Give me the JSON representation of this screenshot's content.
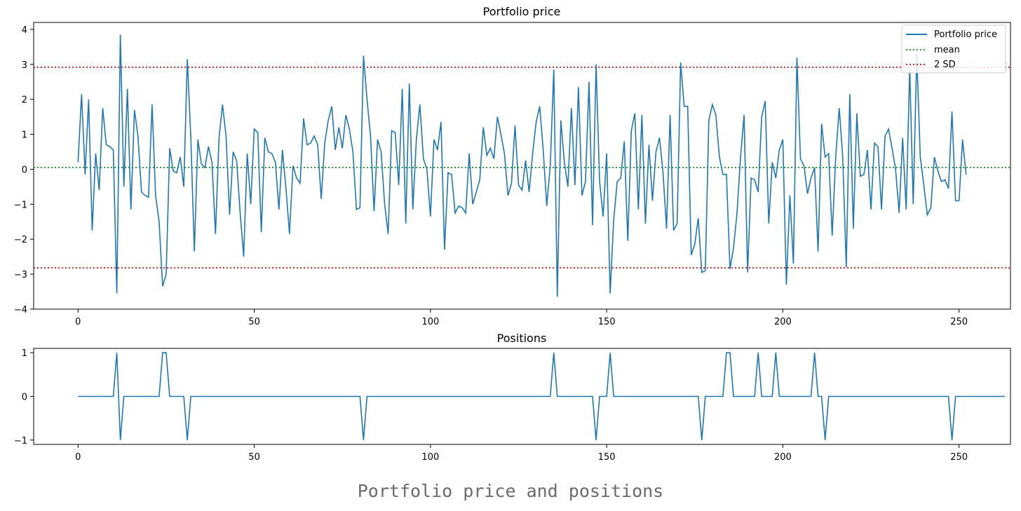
{
  "caption": "Portfolio price and positions",
  "colors": {
    "series": "#1f77b4",
    "mean": "#2ca02c",
    "sd": "#d62728",
    "axis": "#000000"
  },
  "chart_data": [
    {
      "type": "line",
      "title": "Portfolio price",
      "xlim": [
        -12.6,
        264.6
      ],
      "ylim": [
        -4,
        4.2
      ],
      "xticks": [
        0,
        50,
        100,
        150,
        200,
        250
      ],
      "yticks": [
        -4,
        -3,
        -2,
        -1,
        0,
        1,
        2,
        3,
        4
      ],
      "grid": false,
      "legend_position": "top-right",
      "series": [
        {
          "name": "Portfolio price",
          "style": "solid",
          "color": "#1f77b4",
          "y": [
            0.2,
            2.15,
            -0.15,
            2.0,
            -1.75,
            0.45,
            -0.6,
            1.75,
            0.7,
            0.65,
            0.55,
            -3.55,
            3.85,
            -0.5,
            2.3,
            -1.15,
            1.7,
            0.95,
            -0.65,
            -0.75,
            -0.8,
            1.85,
            -0.75,
            -1.5,
            -3.35,
            -3.0,
            0.6,
            -0.05,
            -0.1,
            0.35,
            -0.5,
            3.15,
            0.9,
            -2.35,
            0.85,
            0.15,
            0.05,
            0.65,
            0.2,
            -1.85,
            0.9,
            1.85,
            0.95,
            -1.3,
            0.5,
            0.25,
            -1.25,
            -2.5,
            0.45,
            -1.0,
            1.15,
            1.05,
            -1.8,
            0.9,
            0.5,
            0.45,
            0.2,
            -1.15,
            0.55,
            -0.55,
            -1.85,
            0.1,
            -0.25,
            -0.4,
            1.45,
            0.7,
            0.75,
            0.95,
            0.7,
            -0.85,
            0.75,
            1.4,
            1.8,
            0.55,
            1.2,
            0.6,
            1.55,
            1.15,
            0.5,
            -1.15,
            -1.1,
            3.25,
            2.0,
            0.95,
            -1.2,
            0.85,
            0.5,
            -1.0,
            -1.85,
            1.1,
            1.05,
            -0.45,
            2.3,
            -1.55,
            2.45,
            -1.15,
            0.85,
            1.85,
            0.3,
            0.0,
            -1.35,
            0.85,
            0.55,
            1.35,
            -2.3,
            -0.1,
            -0.15,
            -1.25,
            -1.05,
            -1.1,
            -1.25,
            0.45,
            -1.0,
            -0.65,
            -0.3,
            1.2,
            0.4,
            0.6,
            0.3,
            1.5,
            1.0,
            0.45,
            -0.75,
            -0.4,
            1.25,
            -0.45,
            -0.6,
            0.25,
            -0.65,
            0.45,
            1.35,
            1.8,
            0.55,
            -1.05,
            0.1,
            2.85,
            -3.65,
            1.4,
            0.2,
            -0.5,
            1.75,
            -0.45,
            2.35,
            -0.75,
            -0.35,
            2.5,
            -1.6,
            3.0,
            -0.35,
            -1.35,
            0.45,
            -3.55,
            -1.45,
            -0.35,
            -0.25,
            0.8,
            -2.05,
            1.1,
            1.6,
            -1.15,
            1.55,
            -1.55,
            0.7,
            -0.9,
            0.5,
            0.9,
            -0.1,
            -1.7,
            1.55,
            -1.75,
            -1.55,
            3.05,
            1.8,
            1.8,
            -2.45,
            -2.15,
            -1.4,
            -2.95,
            -2.9,
            1.4,
            1.85,
            1.55,
            0.35,
            -0.15,
            -0.15,
            -2.85,
            -2.25,
            -1.25,
            0.35,
            1.55,
            -2.95,
            -0.25,
            -0.3,
            -0.65,
            1.5,
            1.95,
            -1.55,
            0.2,
            -0.25,
            0.55,
            0.85,
            -3.3,
            -0.75,
            -2.7,
            3.2,
            0.3,
            0.1,
            -0.7,
            -0.25,
            0.05,
            -2.35,
            1.3,
            0.35,
            0.45,
            -1.9,
            0.35,
            1.75,
            0.35,
            -2.8,
            2.15,
            -1.7,
            1.6,
            -0.2,
            -0.15,
            0.55,
            -1.15,
            0.75,
            0.65,
            -1.15,
            0.95,
            1.15,
            0.6,
            0.0,
            -1.25,
            0.9,
            -1.15,
            2.9,
            -1.0,
            3.3,
            0.35,
            -0.45,
            -1.3,
            -1.1,
            0.35,
            -0.05,
            -0.35,
            -0.3,
            -0.55,
            1.65,
            -0.9,
            -0.9,
            0.85,
            -0.15
          ]
        },
        {
          "name": "mean",
          "style": "dotted",
          "color": "#2ca02c",
          "y_const": 0.05
        },
        {
          "name": "2 SD",
          "style": "dotted",
          "color": "#d62728",
          "y_const": [
            2.92,
            -2.82
          ]
        }
      ]
    },
    {
      "type": "line",
      "title": "Positions",
      "xlim": [
        -12.6,
        264.6
      ],
      "ylim": [
        -1.1,
        1.1
      ],
      "xticks": [
        0,
        50,
        100,
        150,
        200,
        250
      ],
      "yticks": [
        -1,
        0,
        1
      ],
      "grid": false,
      "series": [
        {
          "name": "",
          "style": "solid",
          "color": "#1f77b4",
          "y": [
            0,
            0,
            0,
            0,
            0,
            0,
            0,
            0,
            0,
            0,
            0,
            1,
            -1,
            0,
            0,
            0,
            0,
            0,
            0,
            0,
            0,
            0,
            0,
            0,
            1,
            1,
            0,
            0,
            0,
            0,
            0,
            -1,
            0,
            0,
            0,
            0,
            0,
            0,
            0,
            0,
            0,
            0,
            0,
            0,
            0,
            0,
            0,
            0,
            0,
            0,
            0,
            0,
            0,
            0,
            0,
            0,
            0,
            0,
            0,
            0,
            0,
            0,
            0,
            0,
            0,
            0,
            0,
            0,
            0,
            0,
            0,
            0,
            0,
            0,
            0,
            0,
            0,
            0,
            0,
            0,
            0,
            -1,
            0,
            0,
            0,
            0,
            0,
            0,
            0,
            0,
            0,
            0,
            0,
            0,
            0,
            0,
            0,
            0,
            0,
            0,
            0,
            0,
            0,
            0,
            0,
            0,
            0,
            0,
            0,
            0,
            0,
            0,
            0,
            0,
            0,
            0,
            0,
            0,
            0,
            0,
            0,
            0,
            0,
            0,
            0,
            0,
            0,
            0,
            0,
            0,
            0,
            0,
            0,
            0,
            0,
            1,
            0,
            0,
            0,
            0,
            0,
            0,
            0,
            0,
            0,
            0,
            0,
            -1,
            0,
            0,
            0,
            1,
            0,
            0,
            0,
            0,
            0,
            0,
            0,
            0,
            0,
            0,
            0,
            0,
            0,
            0,
            0,
            0,
            0,
            0,
            0,
            0,
            0,
            0,
            0,
            0,
            0,
            -1,
            0,
            0,
            0,
            0,
            0,
            0,
            1,
            1,
            0,
            0,
            0,
            0,
            0,
            0,
            0,
            1,
            0,
            0,
            0,
            0,
            1,
            0,
            0,
            0,
            0,
            0,
            0,
            0,
            0,
            0,
            0,
            1,
            0,
            0,
            -1,
            0,
            0,
            0,
            0,
            0,
            0,
            0,
            0,
            0,
            0,
            0,
            0,
            0,
            0,
            0,
            0,
            0,
            0,
            0,
            0,
            0,
            0,
            0,
            0,
            0,
            0,
            0,
            0,
            0,
            0,
            0,
            0,
            0,
            0,
            0,
            -1,
            0,
            0,
            0,
            0,
            0,
            0,
            0,
            0,
            0,
            0,
            0,
            0,
            0,
            0,
            0
          ]
        }
      ]
    }
  ]
}
